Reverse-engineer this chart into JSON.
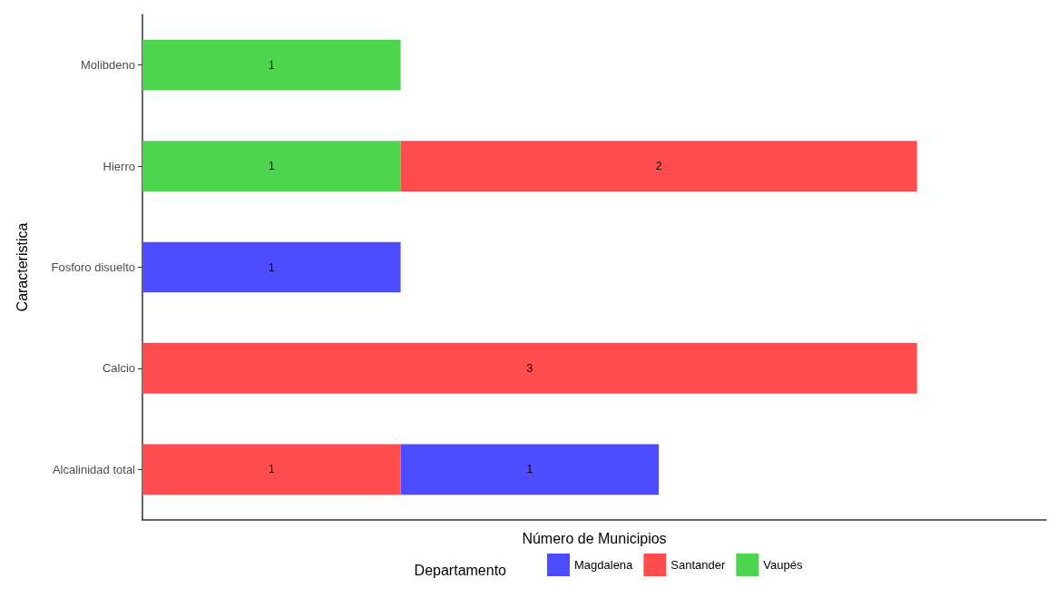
{
  "chart_data": {
    "type": "bar",
    "orientation": "horizontal",
    "stacked": true,
    "xlabel": "Número de Municipios",
    "ylabel": "Caracteristica",
    "legend_title": "Departamento",
    "legend": "bottom",
    "grid": false,
    "tick_labels": "y",
    "data_labels": true,
    "categories": [
      "Molibdeno",
      "Hierro",
      "Fosforo disuelto",
      "Calcio",
      "Alcalinidad total"
    ],
    "series": [
      {
        "name": "Vaupés",
        "color": "#4dd54d",
        "values": [
          1,
          1,
          null,
          null,
          null
        ]
      },
      {
        "name": "Santander",
        "color": "#ff4d4d",
        "values": [
          null,
          2,
          null,
          3,
          1
        ]
      },
      {
        "name": "Magdalena",
        "color": "#4d4dff",
        "values": [
          null,
          null,
          1,
          null,
          1
        ]
      }
    ]
  }
}
